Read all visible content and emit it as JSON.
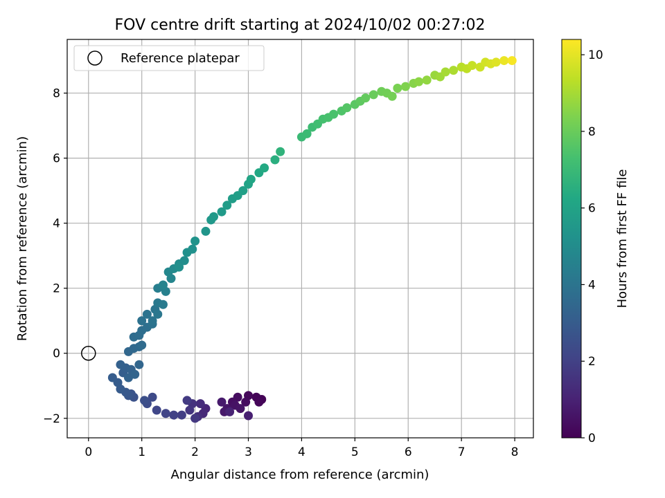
{
  "chart_data": {
    "type": "scatter",
    "title": "FOV centre drift starting at 2024/10/02 00:27:02",
    "xlabel": "Angular distance from reference (arcmin)",
    "ylabel": "Rotation from reference (arcmin)",
    "xlim": [
      -0.4,
      8.35
    ],
    "ylim": [
      -2.6,
      9.65
    ],
    "xticks": [
      0,
      1,
      2,
      3,
      4,
      5,
      6,
      7,
      8
    ],
    "yticks": [
      -2,
      0,
      2,
      4,
      6,
      8
    ],
    "grid": true,
    "legend": {
      "position": "top-left",
      "entries": [
        "Reference platepar"
      ]
    },
    "reference_point": {
      "x": 0,
      "y": 0,
      "label": "Reference platepar"
    },
    "colorbar": {
      "label": "Hours from first FF file",
      "colormap": "viridis",
      "range": [
        0,
        10.4
      ],
      "ticks": [
        0,
        2,
        4,
        6,
        8,
        10
      ]
    },
    "series": [
      {
        "points": [
          [
            3.25,
            -1.42,
            0.05
          ],
          [
            3.15,
            -1.35,
            0.1
          ],
          [
            3.2,
            -1.5,
            0.15
          ],
          [
            3.0,
            -1.3,
            0.2
          ],
          [
            2.95,
            -1.5,
            0.3
          ],
          [
            2.8,
            -1.35,
            0.35
          ],
          [
            2.7,
            -1.5,
            0.4
          ],
          [
            2.75,
            -1.6,
            0.5
          ],
          [
            2.85,
            -1.7,
            0.55
          ],
          [
            2.6,
            -1.7,
            0.6
          ],
          [
            2.55,
            -1.8,
            0.7
          ],
          [
            2.5,
            -1.5,
            0.75
          ],
          [
            3.0,
            -1.92,
            0.9
          ],
          [
            2.65,
            -1.8,
            1.0
          ],
          [
            2.2,
            -1.7,
            1.1
          ],
          [
            2.15,
            -1.85,
            1.2
          ],
          [
            2.1,
            -1.55,
            1.3
          ],
          [
            2.05,
            -1.95,
            1.4
          ],
          [
            1.95,
            -1.55,
            1.5
          ],
          [
            1.9,
            -1.75,
            1.6
          ],
          [
            2.0,
            -2.0,
            1.7
          ],
          [
            1.85,
            -1.45,
            1.8
          ],
          [
            1.75,
            -1.9,
            1.9
          ],
          [
            1.6,
            -1.9,
            2.0
          ],
          [
            1.45,
            -1.85,
            2.1
          ],
          [
            1.28,
            -1.75,
            2.2
          ],
          [
            1.2,
            -1.35,
            2.3
          ],
          [
            1.1,
            -1.55,
            2.4
          ],
          [
            1.05,
            -1.45,
            2.5
          ],
          [
            0.85,
            -1.35,
            2.6
          ],
          [
            0.8,
            -1.25,
            2.7
          ],
          [
            0.75,
            -1.3,
            2.8
          ],
          [
            0.7,
            -1.2,
            2.9
          ],
          [
            0.6,
            -1.1,
            2.95
          ],
          [
            0.55,
            -0.9,
            3.0
          ],
          [
            0.45,
            -0.75,
            3.05
          ],
          [
            0.65,
            -0.6,
            3.1
          ],
          [
            0.7,
            -0.45,
            3.15
          ],
          [
            0.6,
            -0.35,
            3.2
          ],
          [
            0.8,
            -0.5,
            3.25
          ],
          [
            0.75,
            -0.75,
            3.3
          ],
          [
            0.87,
            -0.65,
            3.35
          ],
          [
            0.95,
            -0.35,
            3.4
          ],
          [
            0.75,
            0.05,
            3.45
          ],
          [
            0.85,
            0.15,
            3.5
          ],
          [
            0.95,
            0.2,
            3.55
          ],
          [
            1.0,
            0.25,
            3.6
          ],
          [
            0.85,
            0.5,
            3.65
          ],
          [
            0.95,
            0.55,
            3.7
          ],
          [
            1.0,
            0.7,
            3.75
          ],
          [
            1.1,
            0.8,
            3.8
          ],
          [
            1.0,
            1.0,
            3.85
          ],
          [
            1.2,
            0.9,
            3.9
          ],
          [
            1.1,
            1.2,
            3.95
          ],
          [
            1.2,
            1.0,
            4.0
          ],
          [
            1.25,
            1.35,
            4.05
          ],
          [
            1.3,
            1.2,
            4.1
          ],
          [
            1.3,
            1.55,
            4.2
          ],
          [
            1.4,
            1.5,
            4.3
          ],
          [
            1.3,
            2.0,
            4.4
          ],
          [
            1.45,
            1.9,
            4.5
          ],
          [
            1.4,
            2.1,
            4.6
          ],
          [
            1.55,
            2.3,
            4.7
          ],
          [
            1.5,
            2.5,
            4.8
          ],
          [
            1.6,
            2.6,
            4.9
          ],
          [
            1.7,
            2.75,
            5.0
          ],
          [
            1.8,
            2.85,
            5.05
          ],
          [
            1.7,
            2.65,
            5.1
          ],
          [
            1.85,
            3.1,
            5.15
          ],
          [
            1.95,
            3.2,
            5.2
          ],
          [
            2.0,
            3.45,
            5.3
          ],
          [
            2.2,
            3.75,
            5.4
          ],
          [
            2.3,
            4.1,
            5.5
          ],
          [
            2.35,
            4.2,
            5.55
          ],
          [
            2.5,
            4.35,
            5.6
          ],
          [
            2.6,
            4.55,
            5.7
          ],
          [
            2.7,
            4.75,
            5.75
          ],
          [
            2.8,
            4.85,
            5.8
          ],
          [
            2.9,
            5.0,
            5.9
          ],
          [
            3.0,
            5.2,
            6.0
          ],
          [
            3.05,
            5.35,
            6.1
          ],
          [
            3.2,
            5.55,
            6.2
          ],
          [
            3.3,
            5.7,
            6.3
          ],
          [
            3.5,
            5.95,
            6.5
          ],
          [
            3.6,
            6.2,
            6.7
          ],
          [
            4.0,
            6.65,
            7.0
          ],
          [
            4.1,
            6.75,
            7.05
          ],
          [
            4.2,
            6.95,
            7.1
          ],
          [
            4.3,
            7.05,
            7.2
          ],
          [
            4.4,
            7.2,
            7.3
          ],
          [
            4.5,
            7.25,
            7.35
          ],
          [
            4.6,
            7.35,
            7.4
          ],
          [
            4.75,
            7.45,
            7.5
          ],
          [
            4.85,
            7.55,
            7.6
          ],
          [
            5.0,
            7.65,
            7.7
          ],
          [
            5.1,
            7.75,
            7.8
          ],
          [
            5.2,
            7.85,
            7.9
          ],
          [
            5.35,
            7.95,
            8.0
          ],
          [
            5.5,
            8.05,
            8.1
          ],
          [
            5.6,
            8.0,
            8.15
          ],
          [
            5.7,
            7.9,
            8.2
          ],
          [
            5.8,
            8.15,
            8.3
          ],
          [
            5.95,
            8.2,
            8.4
          ],
          [
            6.1,
            8.3,
            8.5
          ],
          [
            6.2,
            8.35,
            8.6
          ],
          [
            6.35,
            8.4,
            8.7
          ],
          [
            6.5,
            8.55,
            8.8
          ],
          [
            6.6,
            8.5,
            8.9
          ],
          [
            6.7,
            8.65,
            9.0
          ],
          [
            6.85,
            8.7,
            9.1
          ],
          [
            7.0,
            8.8,
            9.3
          ],
          [
            7.1,
            8.75,
            9.4
          ],
          [
            7.2,
            8.85,
            9.5
          ],
          [
            7.35,
            8.8,
            9.6
          ],
          [
            7.45,
            8.95,
            9.7
          ],
          [
            7.55,
            8.9,
            9.8
          ],
          [
            7.65,
            8.95,
            9.9
          ],
          [
            7.8,
            9.0,
            10.1
          ],
          [
            7.95,
            9.0,
            10.3
          ]
        ]
      }
    ]
  }
}
